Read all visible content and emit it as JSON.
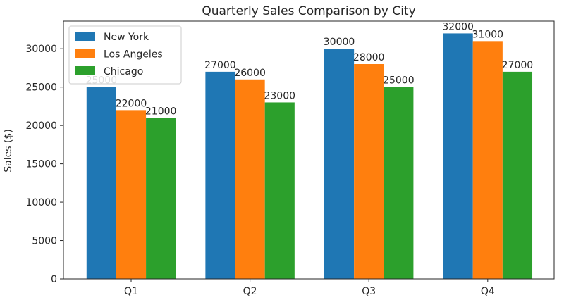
{
  "chart_data": {
    "type": "bar",
    "title": "Quarterly Sales Comparison by City",
    "xlabel": "",
    "ylabel": "Sales ($)",
    "categories": [
      "Q1",
      "Q2",
      "Q3",
      "Q4"
    ],
    "series": [
      {
        "name": "New York",
        "color": "#1f77b4",
        "values": [
          25000,
          27000,
          30000,
          32000
        ]
      },
      {
        "name": "Los Angeles",
        "color": "#ff7f0e",
        "values": [
          22000,
          26000,
          28000,
          31000
        ]
      },
      {
        "name": "Chicago",
        "color": "#2ca02c",
        "values": [
          21000,
          23000,
          25000,
          27000
        ]
      }
    ],
    "ylim": [
      0,
      33600
    ],
    "yticks": [
      0,
      5000,
      10000,
      15000,
      20000,
      25000,
      30000
    ],
    "grid": false,
    "legend": "top-left"
  }
}
